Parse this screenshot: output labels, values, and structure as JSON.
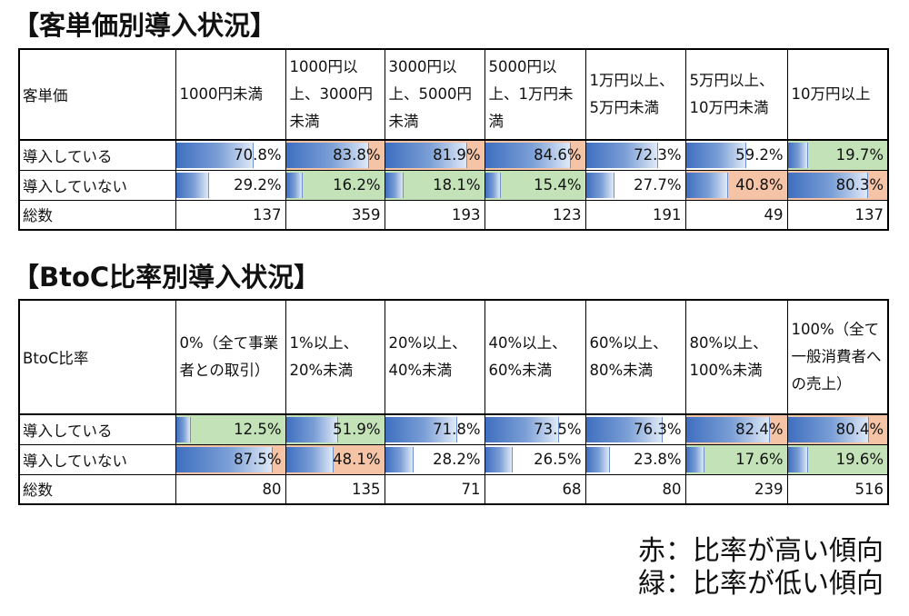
{
  "table1": {
    "title": "【客単価別導入状況】",
    "header_label": "客単価",
    "columns": [
      "1000円未満",
      "1000円以上、3000円未満",
      "3000円以上、5000円未満",
      "5000円以上、1万円未満",
      "1万円以上、5万円未満",
      "5万円以上、10万円未満",
      "10万円以上"
    ],
    "row_adopted": {
      "label": "導入している",
      "values": [
        "70.8%",
        "83.8%",
        "81.9%",
        "84.6%",
        "72.3%",
        "59.2%",
        "19.7%"
      ],
      "fractions": [
        0.708,
        0.838,
        0.819,
        0.846,
        0.723,
        0.592,
        0.197
      ],
      "highlight": [
        "",
        "hi",
        "hi",
        "hi",
        "",
        "",
        "lo"
      ]
    },
    "row_not_adopted": {
      "label": "導入していない",
      "values": [
        "29.2%",
        "16.2%",
        "18.1%",
        "15.4%",
        "27.7%",
        "40.8%",
        "80.3%"
      ],
      "fractions": [
        0.292,
        0.162,
        0.181,
        0.154,
        0.277,
        0.408,
        0.803
      ],
      "highlight": [
        "",
        "lo",
        "lo",
        "lo",
        "",
        "hi",
        "hi"
      ]
    },
    "row_total": {
      "label": "総数",
      "values": [
        "137",
        "359",
        "193",
        "123",
        "191",
        "49",
        "137"
      ]
    }
  },
  "table2": {
    "title": "【BtoC比率別導入状況】",
    "header_label": "BtoC比率",
    "columns": [
      "0%（全て事業者との取引）",
      "1%以上、20%未満",
      "20%以上、40%未満",
      "40%以上、60%未満",
      "60%以上、80%未満",
      "80%以上、100%未満",
      "100%（全て一般消費者への売上）"
    ],
    "row_adopted": {
      "label": "導入している",
      "values": [
        "12.5%",
        "51.9%",
        "71.8%",
        "73.5%",
        "76.3%",
        "82.4%",
        "80.4%"
      ],
      "fractions": [
        0.125,
        0.519,
        0.718,
        0.735,
        0.763,
        0.824,
        0.804
      ],
      "highlight": [
        "lo",
        "lo",
        "",
        "",
        "",
        "hi",
        "hi"
      ]
    },
    "row_not_adopted": {
      "label": "導入していない",
      "values": [
        "87.5%",
        "48.1%",
        "28.2%",
        "26.5%",
        "23.8%",
        "17.6%",
        "19.6%"
      ],
      "fractions": [
        0.875,
        0.481,
        0.282,
        0.265,
        0.238,
        0.176,
        0.196
      ],
      "highlight": [
        "hi",
        "hi",
        "",
        "",
        "",
        "lo",
        "lo"
      ]
    },
    "row_total": {
      "label": "総数",
      "values": [
        "80",
        "135",
        "71",
        "68",
        "80",
        "239",
        "516"
      ]
    }
  },
  "legend": {
    "red": "赤：比率が高い傾向",
    "green": "緑：比率が低い傾向"
  },
  "colors": {
    "high": "#f5c3a6",
    "low": "#c3e2b7",
    "bar": "#3f6fc0"
  }
}
